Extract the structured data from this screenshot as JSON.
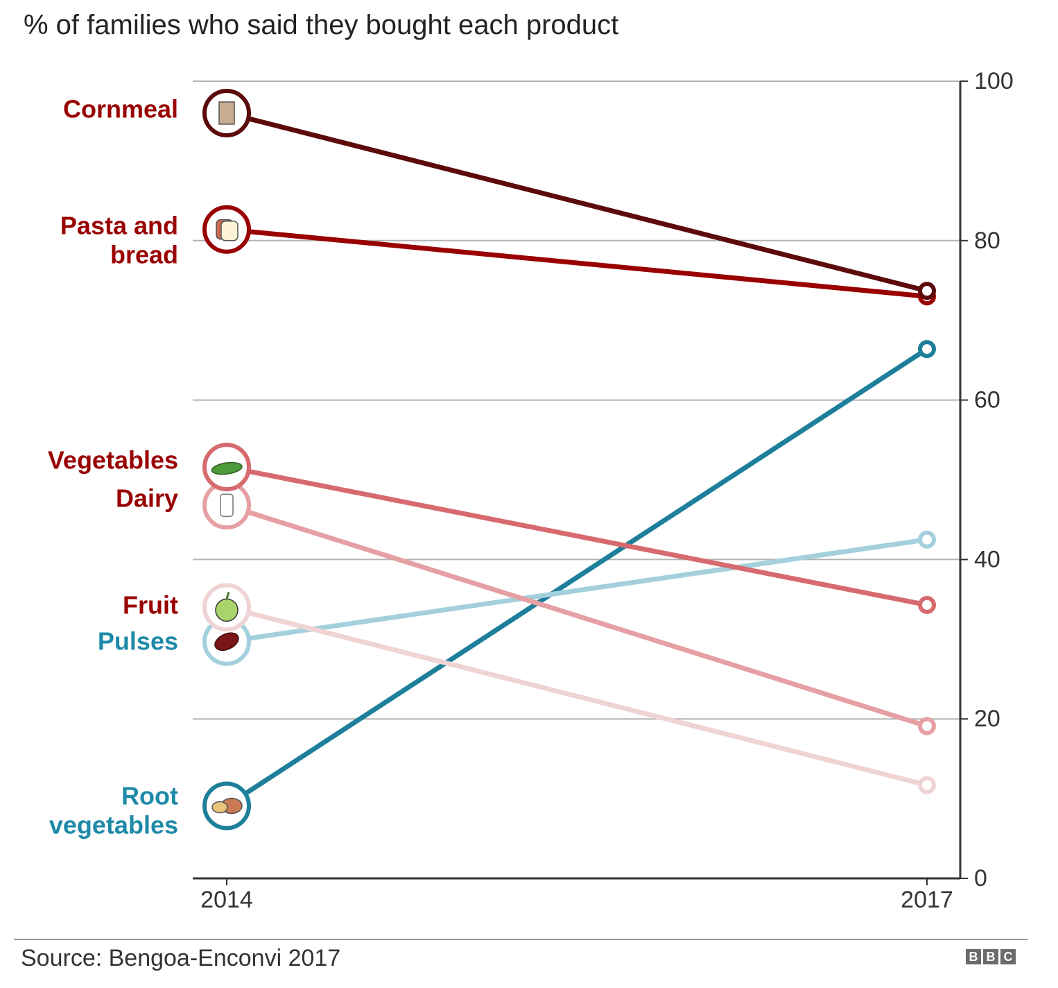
{
  "chart_data": {
    "type": "line",
    "subtype": "slope",
    "title": "% of families who said they bought each product",
    "xlabel": "",
    "ylabel": "",
    "x": [
      "2014",
      "2017"
    ],
    "ylim": [
      0,
      100
    ],
    "yticks": [
      0,
      20,
      40,
      60,
      80,
      100
    ],
    "grid": true,
    "y_axis_side": "right",
    "series": [
      {
        "name": "Cornmeal",
        "label_lines": [
          "Cornmeal"
        ],
        "values": [
          96,
          73.7
        ],
        "color": "#5c0a0a",
        "label_color": "#990000",
        "icon": "cornmeal-bag-icon"
      },
      {
        "name": "Pasta and bread",
        "label_lines": [
          "Pasta and",
          "bread"
        ],
        "values": [
          81.4,
          73
        ],
        "color": "#990000",
        "label_color": "#990000",
        "icon": "bread-icon"
      },
      {
        "name": "Vegetables",
        "label_lines": [
          "Vegetables"
        ],
        "values": [
          51.6,
          34.3
        ],
        "color": "#d66a6e",
        "label_color": "#990000",
        "icon": "pea-pod-icon"
      },
      {
        "name": "Dairy",
        "label_lines": [
          "Dairy"
        ],
        "values": [
          46.8,
          19.1
        ],
        "color": "#e6a0a3",
        "label_color": "#990000",
        "icon": "milk-bottle-icon"
      },
      {
        "name": "Fruit",
        "label_lines": [
          "Fruit"
        ],
        "values": [
          34,
          11.7
        ],
        "color": "#f0d3d4",
        "label_color": "#990000",
        "icon": "apple-icon"
      },
      {
        "name": "Pulses",
        "label_lines": [
          "Pulses"
        ],
        "values": [
          29.7,
          42.5
        ],
        "color": "#a3d0dc",
        "label_color": "#1d8aa8",
        "icon": "bean-icon"
      },
      {
        "name": "Root vegetables",
        "label_lines": [
          "Root",
          "vegetables"
        ],
        "values": [
          9.1,
          66.4
        ],
        "color": "#1d7f9a",
        "label_color": "#1d8aa8",
        "icon": "potato-icon"
      }
    ]
  },
  "footer": {
    "source": "Source: Bengoa-Enconvi 2017",
    "logo_letters": [
      "B",
      "B",
      "C"
    ]
  }
}
